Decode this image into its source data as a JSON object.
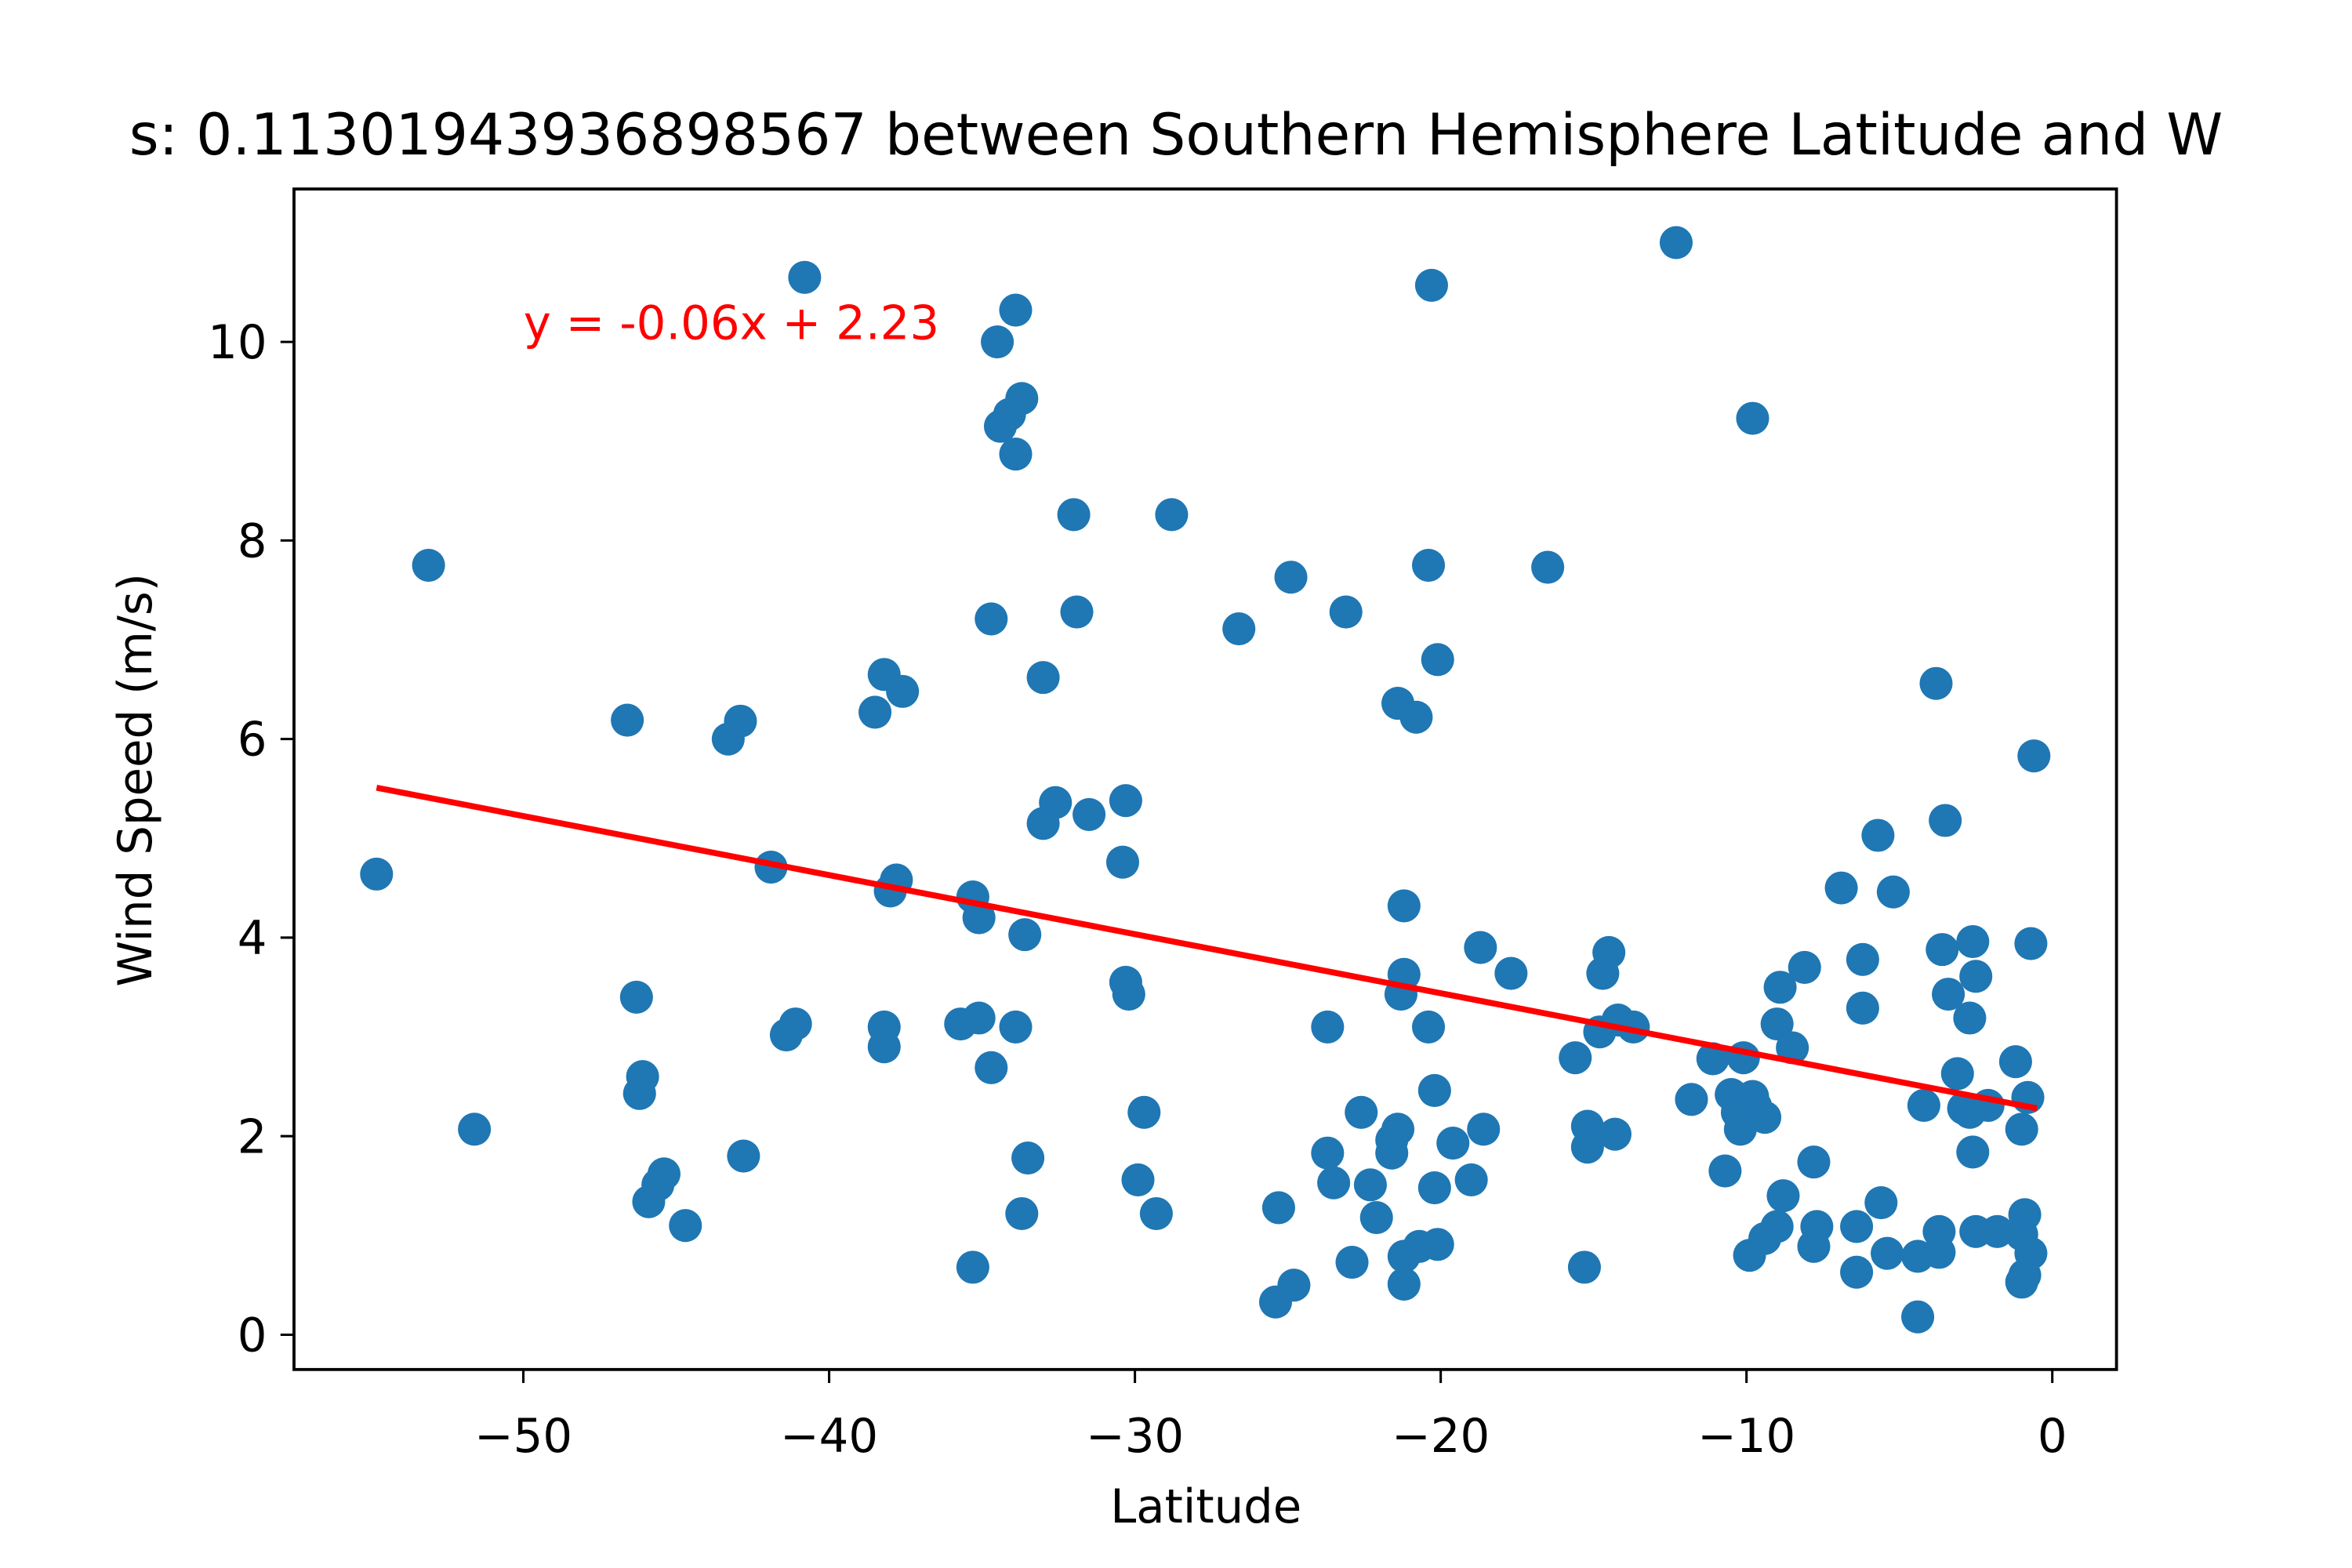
{
  "chart_data": {
    "type": "scatter",
    "title": "s: 0.11301943936898567 between Southern Hemisphere Latitude and W",
    "x_label": "Latitude",
    "y_label": "Wind Speed (m/s)",
    "annotation": "y = -0.06x + 2.23",
    "color": "#1f77b4",
    "x": [
      -54.8,
      -53.1,
      -51.6,
      -46.6,
      -46.3,
      -46.1,
      -46.2,
      -45.9,
      -45.6,
      -45.4,
      -44.7,
      -43.3,
      -42.9,
      -42.8,
      -41.9,
      -41.4,
      -41.1,
      -40.8,
      -38.5,
      -38.2,
      -37.6,
      -38.2,
      -38.2,
      -37.8,
      -38.0,
      -35.7,
      -35.3,
      -35.1,
      -35.1,
      -35.3,
      -34.7,
      -34.7,
      -34.5,
      -34.4,
      -33.9,
      -34.1,
      -33.7,
      -33.9,
      -33.9,
      -33.6,
      -33.5,
      -33.7,
      -33.0,
      -32.6,
      -33.0,
      -32.0,
      -31.9,
      -31.5,
      -30.3,
      -30.4,
      -30.3,
      -30.2,
      -29.7,
      -29.9,
      -29.3,
      -28.8,
      -26.6,
      -25.3,
      -25.4,
      -24.8,
      -24.9,
      -23.7,
      -23.7,
      -23.5,
      -23.1,
      -22.9,
      -22.6,
      -22.3,
      -22.1,
      -21.6,
      -21.6,
      -21.4,
      -21.4,
      -20.8,
      -21.2,
      -21.2,
      -21.3,
      -21.2,
      -21.2,
      -20.7,
      -20.4,
      -20.3,
      -20.4,
      -20.1,
      -20.2,
      -20.2,
      -20.1,
      -19.6,
      -19.0,
      -18.7,
      -18.6,
      -17.7,
      -16.5,
      -15.6,
      -15.3,
      -15.2,
      -15.2,
      -14.8,
      -14.7,
      -14.5,
      -14.3,
      -14.2,
      -13.7,
      -12.3,
      -11.8,
      -11.1,
      -10.7,
      -10.5,
      -10.3,
      -10.2,
      -10.1,
      -9.8,
      -9.9,
      -9.8,
      -9.7,
      -9.4,
      -9.4,
      -9.0,
      -8.9,
      -8.8,
      -9.0,
      -8.5,
      -8.1,
      -7.8,
      -7.8,
      -7.7,
      -6.9,
      -6.4,
      -6.4,
      -6.2,
      -6.2,
      -5.7,
      -5.6,
      -5.4,
      -5.2,
      -4.4,
      -4.2,
      -4.4,
      -3.8,
      -3.7,
      -3.7,
      -3.6,
      -3.5,
      -3.4,
      -3.1,
      -2.9,
      -2.7,
      -2.7,
      -2.6,
      -2.6,
      -2.5,
      -2.5,
      -2.1,
      -1.8,
      -1.2,
      -1.0,
      -1.0,
      -0.9,
      -0.9,
      -1.0,
      -0.7,
      -0.7,
      -0.8,
      -0.6
    ],
    "values": [
      4.64,
      7.75,
      2.07,
      6.19,
      3.4,
      2.6,
      2.43,
      1.34,
      1.51,
      1.62,
      1.1,
      6.0,
      6.18,
      1.8,
      4.71,
      3.02,
      3.13,
      10.65,
      6.27,
      6.65,
      6.48,
      3.1,
      2.9,
      4.58,
      4.47,
      3.13,
      4.41,
      4.2,
      3.19,
      0.68,
      7.21,
      2.69,
      10.0,
      9.15,
      10.32,
      9.27,
      9.43,
      8.87,
      3.1,
      4.03,
      1.78,
      1.22,
      6.62,
      5.36,
      5.15,
      8.26,
      7.28,
      5.24,
      5.38,
      4.76,
      3.55,
      3.43,
      2.24,
      1.56,
      1.22,
      8.26,
      7.11,
      1.28,
      0.33,
      0.5,
      7.63,
      3.1,
      1.83,
      1.53,
      7.28,
      0.73,
      2.24,
      1.51,
      1.18,
      1.83,
      1.96,
      2.07,
      6.36,
      6.22,
      4.32,
      3.63,
      3.43,
      0.79,
      0.51,
      0.89,
      3.1,
      10.57,
      7.75,
      6.8,
      2.46,
      1.48,
      0.91,
      1.93,
      1.56,
      3.9,
      2.07,
      3.64,
      7.73,
      2.79,
      0.68,
      2.1,
      1.89,
      3.05,
      3.64,
      3.85,
      2.02,
      3.17,
      3.1,
      11.0,
      2.37,
      2.78,
      1.65,
      2.42,
      2.24,
      2.07,
      2.79,
      9.23,
      0.8,
      2.4,
      2.3,
      2.19,
      0.97,
      3.13,
      3.5,
      1.4,
      1.09,
      2.89,
      3.7,
      1.74,
      0.89,
      1.09,
      4.5,
      0.63,
      1.09,
      3.78,
      3.29,
      5.03,
      1.33,
      0.82,
      4.46,
      0.79,
      2.31,
      0.18,
      6.56,
      0.83,
      1.04,
      3.88,
      5.18,
      3.43,
      2.63,
      2.28,
      3.19,
      2.24,
      1.84,
      3.96,
      3.61,
      1.04,
      2.31,
      1.04,
      2.75,
      1.01,
      2.07,
      1.21,
      0.6,
      0.53,
      0.82,
      3.94,
      2.39,
      5.83
    ],
    "regression": {
      "color": "red",
      "x": [
        -54.8,
        -0.5
      ],
      "values": [
        5.51,
        2.28
      ]
    },
    "xlim": [
      -57.5,
      2.1
    ],
    "ylim": [
      -0.35,
      11.54
    ],
    "xticks": [
      {
        "value": -50,
        "label": "−50"
      },
      {
        "value": -40,
        "label": "−40"
      },
      {
        "value": -30,
        "label": "−30"
      },
      {
        "value": -20,
        "label": "−20"
      },
      {
        "value": -10,
        "label": "−10"
      },
      0
    ],
    "yticks": [
      0,
      2,
      4,
      6,
      8,
      10
    ]
  }
}
